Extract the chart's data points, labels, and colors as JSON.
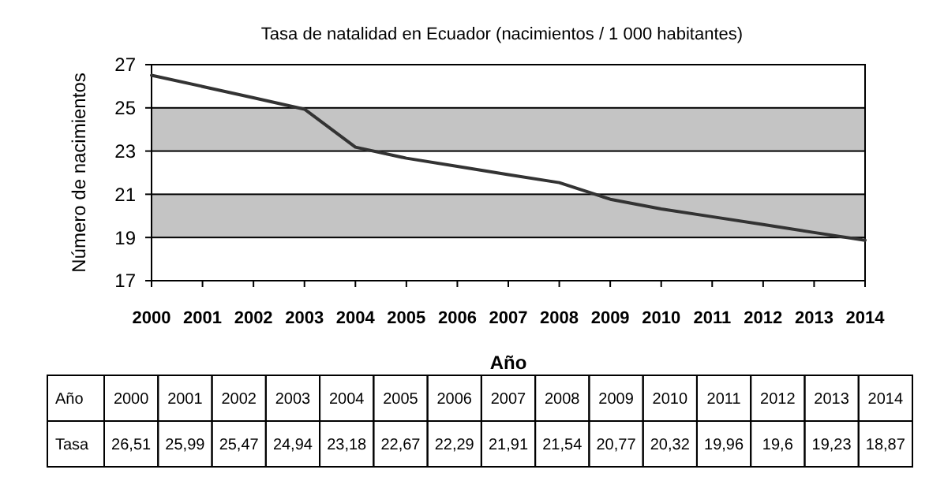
{
  "chart_data": {
    "type": "line",
    "title": "Tasa de natalidad en Ecuador (nacimientos / 1 000 habitantes)",
    "xlabel": "Año",
    "ylabel": "Número de nacimientos",
    "categories": [
      "2000",
      "2001",
      "2002",
      "2003",
      "2004",
      "2005",
      "2006",
      "2007",
      "2008",
      "2009",
      "2010",
      "2011",
      "2012",
      "2013",
      "2014"
    ],
    "series": [
      {
        "name": "Tasa",
        "color": "#333333",
        "values": [
          26.51,
          25.99,
          25.47,
          24.94,
          23.18,
          22.67,
          22.29,
          21.91,
          21.54,
          20.77,
          20.32,
          19.96,
          19.6,
          19.23,
          18.87
        ],
        "value_labels": [
          "26,51",
          "25,99",
          "25,47",
          "24,94",
          "23,18",
          "22,67",
          "22,29",
          "21,91",
          "21,54",
          "20,77",
          "20,32",
          "19,96",
          "19,6",
          "19,23",
          "18,87"
        ]
      }
    ],
    "ylim": [
      17,
      27
    ],
    "yticks": [
      17,
      19,
      21,
      23,
      25,
      27
    ],
    "bands": [
      {
        "axis": "y",
        "from": 19,
        "to": 21,
        "color": "#c4c4c4"
      },
      {
        "axis": "y",
        "from": 23,
        "to": 25,
        "color": "#c4c4c4"
      }
    ],
    "grid": false,
    "marker": "none",
    "line_style": "solid"
  }
}
